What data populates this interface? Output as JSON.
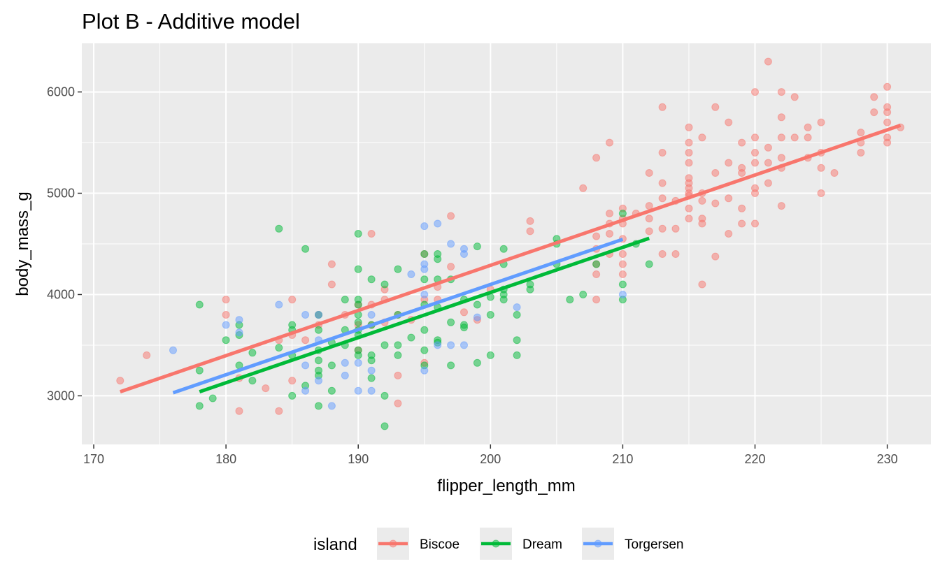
{
  "chart_data": {
    "type": "scatter",
    "title": "Plot B - Additive model",
    "xlabel": "flipper_length_mm",
    "ylabel": "body_mass_g",
    "xlim": [
      169.1,
      233.3
    ],
    "ylim": [
      2520,
      6480
    ],
    "x_ticks": [
      170,
      180,
      190,
      200,
      210,
      220,
      230
    ],
    "y_ticks": [
      3000,
      4000,
      5000,
      6000
    ],
    "grid": true,
    "legend_position": "bottom",
    "legend_title": "island",
    "point_opacity": 0.5,
    "series": [
      {
        "name": "Biscoe",
        "color": "#F8766D",
        "points": [
          [
            172,
            3150
          ],
          [
            174,
            3400
          ],
          [
            180,
            3950
          ],
          [
            180,
            3800
          ],
          [
            181,
            2850
          ],
          [
            181,
            3175
          ],
          [
            183,
            3075
          ],
          [
            184,
            2850
          ],
          [
            184,
            3550
          ],
          [
            185,
            3950
          ],
          [
            185,
            3600
          ],
          [
            185,
            3150
          ],
          [
            186,
            3550
          ],
          [
            187,
            3700
          ],
          [
            187,
            3800
          ],
          [
            188,
            4300
          ],
          [
            188,
            4100
          ],
          [
            189,
            3800
          ],
          [
            190,
            3900
          ],
          [
            190,
            3450
          ],
          [
            190,
            3700
          ],
          [
            191,
            4600
          ],
          [
            191,
            3900
          ],
          [
            191,
            3700
          ],
          [
            192,
            3950
          ],
          [
            192,
            4050
          ],
          [
            192,
            3725
          ],
          [
            193,
            2925
          ],
          [
            193,
            3200
          ],
          [
            193,
            3800
          ],
          [
            194,
            3750
          ],
          [
            195,
            4400
          ],
          [
            195,
            3325
          ],
          [
            195,
            3950
          ],
          [
            196,
            4075
          ],
          [
            196,
            3950
          ],
          [
            197,
            4775
          ],
          [
            197,
            4275
          ],
          [
            198,
            3825
          ],
          [
            199,
            3750
          ],
          [
            200,
            4050
          ],
          [
            203,
            4725
          ],
          [
            203,
            4625
          ],
          [
            207,
            5050
          ],
          [
            208,
            5350
          ],
          [
            208,
            4200
          ],
          [
            208,
            3950
          ],
          [
            208,
            4300
          ],
          [
            208,
            4450
          ],
          [
            208,
            4575
          ],
          [
            209,
            5500
          ],
          [
            209,
            4800
          ],
          [
            209,
            4700
          ],
          [
            209,
            4600
          ],
          [
            209,
            4400
          ],
          [
            210,
            4850
          ],
          [
            210,
            4700
          ],
          [
            210,
            4200
          ],
          [
            210,
            4750
          ],
          [
            210,
            4550
          ],
          [
            210,
            4400
          ],
          [
            210,
            4300
          ],
          [
            211,
            4800
          ],
          [
            212,
            5200
          ],
          [
            212,
            4875
          ],
          [
            212,
            4750
          ],
          [
            212,
            4625
          ],
          [
            213,
            5850
          ],
          [
            213,
            5400
          ],
          [
            213,
            5100
          ],
          [
            213,
            4950
          ],
          [
            213,
            4650
          ],
          [
            213,
            4400
          ],
          [
            214,
            4925
          ],
          [
            214,
            4650
          ],
          [
            214,
            4400
          ],
          [
            215,
            5650
          ],
          [
            215,
            5500
          ],
          [
            215,
            5400
          ],
          [
            215,
            5300
          ],
          [
            215,
            5150
          ],
          [
            215,
            5100
          ],
          [
            215,
            5050
          ],
          [
            215,
            5000
          ],
          [
            215,
            4975
          ],
          [
            215,
            4850
          ],
          [
            215,
            4750
          ],
          [
            216,
            5550
          ],
          [
            216,
            5000
          ],
          [
            216,
            4925
          ],
          [
            216,
            4750
          ],
          [
            216,
            4700
          ],
          [
            216,
            4100
          ],
          [
            217,
            5850
          ],
          [
            217,
            5200
          ],
          [
            217,
            4900
          ],
          [
            217,
            4375
          ],
          [
            218,
            5700
          ],
          [
            218,
            5300
          ],
          [
            218,
            4950
          ],
          [
            218,
            4600
          ],
          [
            219,
            5500
          ],
          [
            219,
            5250
          ],
          [
            219,
            5200
          ],
          [
            219,
            4850
          ],
          [
            219,
            4700
          ],
          [
            220,
            6000
          ],
          [
            220,
            5550
          ],
          [
            220,
            5400
          ],
          [
            220,
            5300
          ],
          [
            220,
            5050
          ],
          [
            220,
            5000
          ],
          [
            220,
            4700
          ],
          [
            221,
            6300
          ],
          [
            221,
            5450
          ],
          [
            221,
            5300
          ],
          [
            221,
            5100
          ],
          [
            222,
            6000
          ],
          [
            222,
            5750
          ],
          [
            222,
            5550
          ],
          [
            222,
            5350
          ],
          [
            222,
            5250
          ],
          [
            222,
            4875
          ],
          [
            223,
            5950
          ],
          [
            223,
            5550
          ],
          [
            224,
            5650
          ],
          [
            224,
            5550
          ],
          [
            224,
            5350
          ],
          [
            225,
            5700
          ],
          [
            225,
            5400
          ],
          [
            225,
            5250
          ],
          [
            225,
            5000
          ],
          [
            226,
            5200
          ],
          [
            228,
            5600
          ],
          [
            228,
            5500
          ],
          [
            228,
            5400
          ],
          [
            229,
            5950
          ],
          [
            229,
            5800
          ],
          [
            230,
            6050
          ],
          [
            230,
            5850
          ],
          [
            230,
            5800
          ],
          [
            230,
            5700
          ],
          [
            230,
            5550
          ],
          [
            230,
            5500
          ],
          [
            231,
            5650
          ]
        ]
      },
      {
        "name": "Dream",
        "color": "#00BA38",
        "points": [
          [
            178,
            3900
          ],
          [
            178,
            3250
          ],
          [
            178,
            2900
          ],
          [
            179,
            2975
          ],
          [
            180,
            3550
          ],
          [
            181,
            3700
          ],
          [
            181,
            3600
          ],
          [
            181,
            3300
          ],
          [
            182,
            3425
          ],
          [
            182,
            3150
          ],
          [
            184,
            4650
          ],
          [
            184,
            3475
          ],
          [
            185,
            3700
          ],
          [
            185,
            3650
          ],
          [
            185,
            3400
          ],
          [
            185,
            3000
          ],
          [
            186,
            4450
          ],
          [
            186,
            3100
          ],
          [
            187,
            3800
          ],
          [
            187,
            3650
          ],
          [
            187,
            3450
          ],
          [
            187,
            3350
          ],
          [
            187,
            3250
          ],
          [
            187,
            3200
          ],
          [
            187,
            2900
          ],
          [
            188,
            3525
          ],
          [
            188,
            3300
          ],
          [
            188,
            3050
          ],
          [
            189,
            3950
          ],
          [
            189,
            3650
          ],
          [
            189,
            3500
          ],
          [
            190,
            4600
          ],
          [
            190,
            4250
          ],
          [
            190,
            3950
          ],
          [
            190,
            3900
          ],
          [
            190,
            3800
          ],
          [
            190,
            3725
          ],
          [
            190,
            3650
          ],
          [
            190,
            3600
          ],
          [
            190,
            3450
          ],
          [
            190,
            3400
          ],
          [
            191,
            4150
          ],
          [
            191,
            3700
          ],
          [
            191,
            3400
          ],
          [
            191,
            3350
          ],
          [
            191,
            3175
          ],
          [
            192,
            4100
          ],
          [
            192,
            3500
          ],
          [
            192,
            3000
          ],
          [
            192,
            2700
          ],
          [
            193,
            4250
          ],
          [
            193,
            3800
          ],
          [
            193,
            3500
          ],
          [
            193,
            3400
          ],
          [
            194,
            3575
          ],
          [
            195,
            4400
          ],
          [
            195,
            4150
          ],
          [
            195,
            3900
          ],
          [
            195,
            3650
          ],
          [
            195,
            3450
          ],
          [
            195,
            3300
          ],
          [
            196,
            4400
          ],
          [
            196,
            4350
          ],
          [
            196,
            4150
          ],
          [
            196,
            3875
          ],
          [
            196,
            3550
          ],
          [
            196,
            3525
          ],
          [
            197,
            4150
          ],
          [
            197,
            3725
          ],
          [
            197,
            3300
          ],
          [
            198,
            3950
          ],
          [
            198,
            3700
          ],
          [
            198,
            3675
          ],
          [
            199,
            4475
          ],
          [
            199,
            3900
          ],
          [
            199,
            3325
          ],
          [
            200,
            3975
          ],
          [
            200,
            3800
          ],
          [
            200,
            3400
          ],
          [
            201,
            4450
          ],
          [
            201,
            4300
          ],
          [
            201,
            4050
          ],
          [
            201,
            4000
          ],
          [
            201,
            3950
          ],
          [
            202,
            3800
          ],
          [
            202,
            3550
          ],
          [
            202,
            3400
          ],
          [
            203,
            4100
          ],
          [
            203,
            4050
          ],
          [
            205,
            4550
          ],
          [
            205,
            4500
          ],
          [
            205,
            4300
          ],
          [
            206,
            3950
          ],
          [
            207,
            4000
          ],
          [
            208,
            4300
          ],
          [
            210,
            4800
          ],
          [
            210,
            4100
          ],
          [
            210,
            3950
          ],
          [
            211,
            4500
          ],
          [
            212,
            4300
          ]
        ]
      },
      {
        "name": "Torgersen",
        "color": "#619CFF",
        "points": [
          [
            176,
            3450
          ],
          [
            180,
            3700
          ],
          [
            181,
            3625
          ],
          [
            181,
            3750
          ],
          [
            184,
            3900
          ],
          [
            186,
            3800
          ],
          [
            186,
            3300
          ],
          [
            186,
            3050
          ],
          [
            187,
            3800
          ],
          [
            187,
            3550
          ],
          [
            187,
            3150
          ],
          [
            188,
            2900
          ],
          [
            189,
            3325
          ],
          [
            189,
            3200
          ],
          [
            190,
            3325
          ],
          [
            190,
            3050
          ],
          [
            191,
            3800
          ],
          [
            191,
            3250
          ],
          [
            191,
            3050
          ],
          [
            194,
            4200
          ],
          [
            195,
            4675
          ],
          [
            195,
            4300
          ],
          [
            195,
            4250
          ],
          [
            195,
            4000
          ],
          [
            195,
            3250
          ],
          [
            196,
            4700
          ],
          [
            196,
            3500
          ],
          [
            197,
            4500
          ],
          [
            197,
            3500
          ],
          [
            198,
            4450
          ],
          [
            198,
            4400
          ],
          [
            198,
            3500
          ],
          [
            199,
            3775
          ],
          [
            202,
            3875
          ],
          [
            210,
            4000
          ]
        ]
      }
    ],
    "fit_lines": [
      {
        "name": "Biscoe",
        "color": "#F8766D",
        "x": [
          172,
          231
        ],
        "y": [
          3040,
          5670
        ]
      },
      {
        "name": "Dream",
        "color": "#00BA38",
        "x": [
          178,
          212
        ],
        "y": [
          3040,
          4555
        ]
      },
      {
        "name": "Torgersen",
        "color": "#619CFF",
        "x": [
          176,
          210
        ],
        "y": [
          3030,
          4545
        ]
      }
    ]
  }
}
